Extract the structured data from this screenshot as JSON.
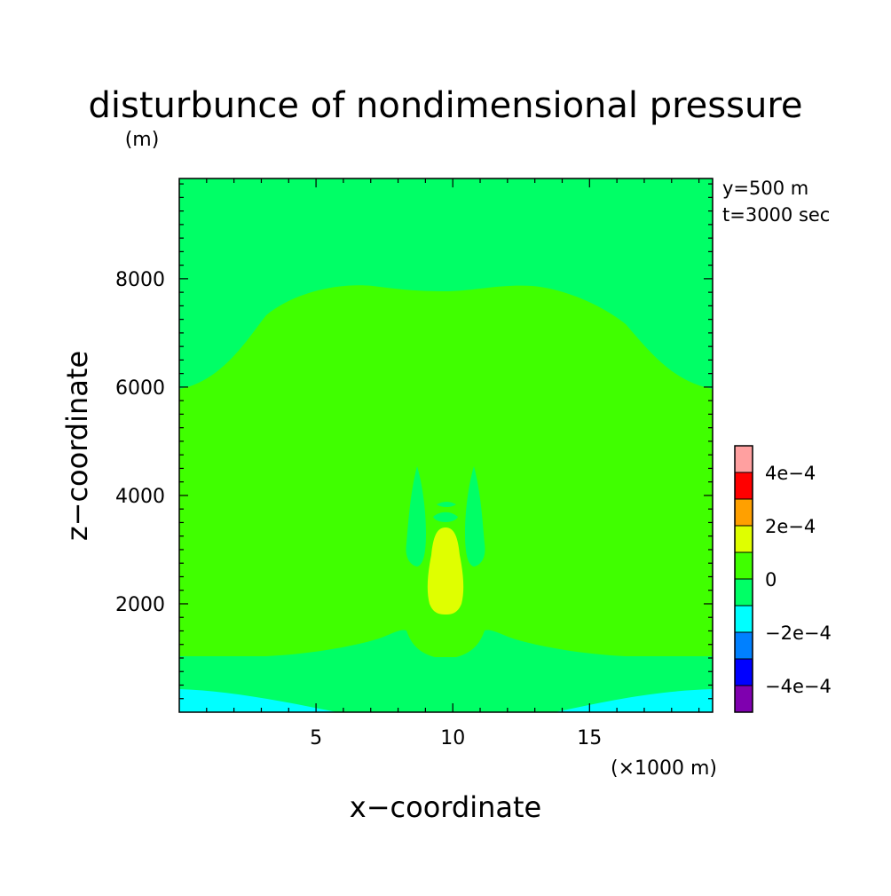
{
  "chart_data": {
    "type": "heatmap",
    "title": "disturbunce of nondimensional pressure",
    "ylabel": "z−coordinate",
    "xlabel": "x−coordinate",
    "y_unit": "(m)",
    "x_unit": "(×1000 m)",
    "annotations": [
      "y=500 m",
      "t=3000 sec"
    ],
    "xlim": [
      0,
      19.5
    ],
    "ylim": [
      0,
      9850
    ],
    "x_ticks": [
      {
        "value": 5,
        "label": "5"
      },
      {
        "value": 10,
        "label": "10"
      },
      {
        "value": 15,
        "label": "15"
      }
    ],
    "y_ticks": [
      {
        "value": 2000,
        "label": "2000"
      },
      {
        "value": 4000,
        "label": "4000"
      },
      {
        "value": 6000,
        "label": "6000"
      },
      {
        "value": 8000,
        "label": "8000"
      }
    ],
    "colorbar": {
      "colors": [
        "#7f00af",
        "#0000ff",
        "#0080ff",
        "#00ffff",
        "#00ff66",
        "#40ff00",
        "#dfff00",
        "#ffa000",
        "#ff0000",
        "#ffa0a0"
      ],
      "bounds": [
        -0.0005,
        -0.0004,
        -0.0003,
        -0.0002,
        -0.0001,
        0,
        0.0001,
        0.0002,
        0.0003,
        0.0004,
        0.0005
      ],
      "labels": [
        {
          "value": -0.0004,
          "label": "−4e−4"
        },
        {
          "value": -0.0002,
          "label": "−2e−4"
        },
        {
          "value": 0,
          "label": "0"
        },
        {
          "value": 0.0002,
          "label": "2e−4"
        },
        {
          "value": 0.0004,
          "label": "4e−4"
        }
      ]
    },
    "regions": [
      {
        "name": "background",
        "level": "-1e-4 to 0",
        "color": "#00ff66"
      },
      {
        "name": "main-lobe",
        "level": "0 to 1e-4",
        "color": "#40ff00"
      },
      {
        "name": "surface-band",
        "level": "-2e-4 to -1e-4",
        "color": "#00ffff"
      },
      {
        "name": "central-core",
        "level": "1e-4 to 2e-4",
        "color": "#dfff00"
      },
      {
        "name": "side-jets",
        "level": "-1e-4 to 0",
        "color": "#00ff66"
      }
    ]
  }
}
